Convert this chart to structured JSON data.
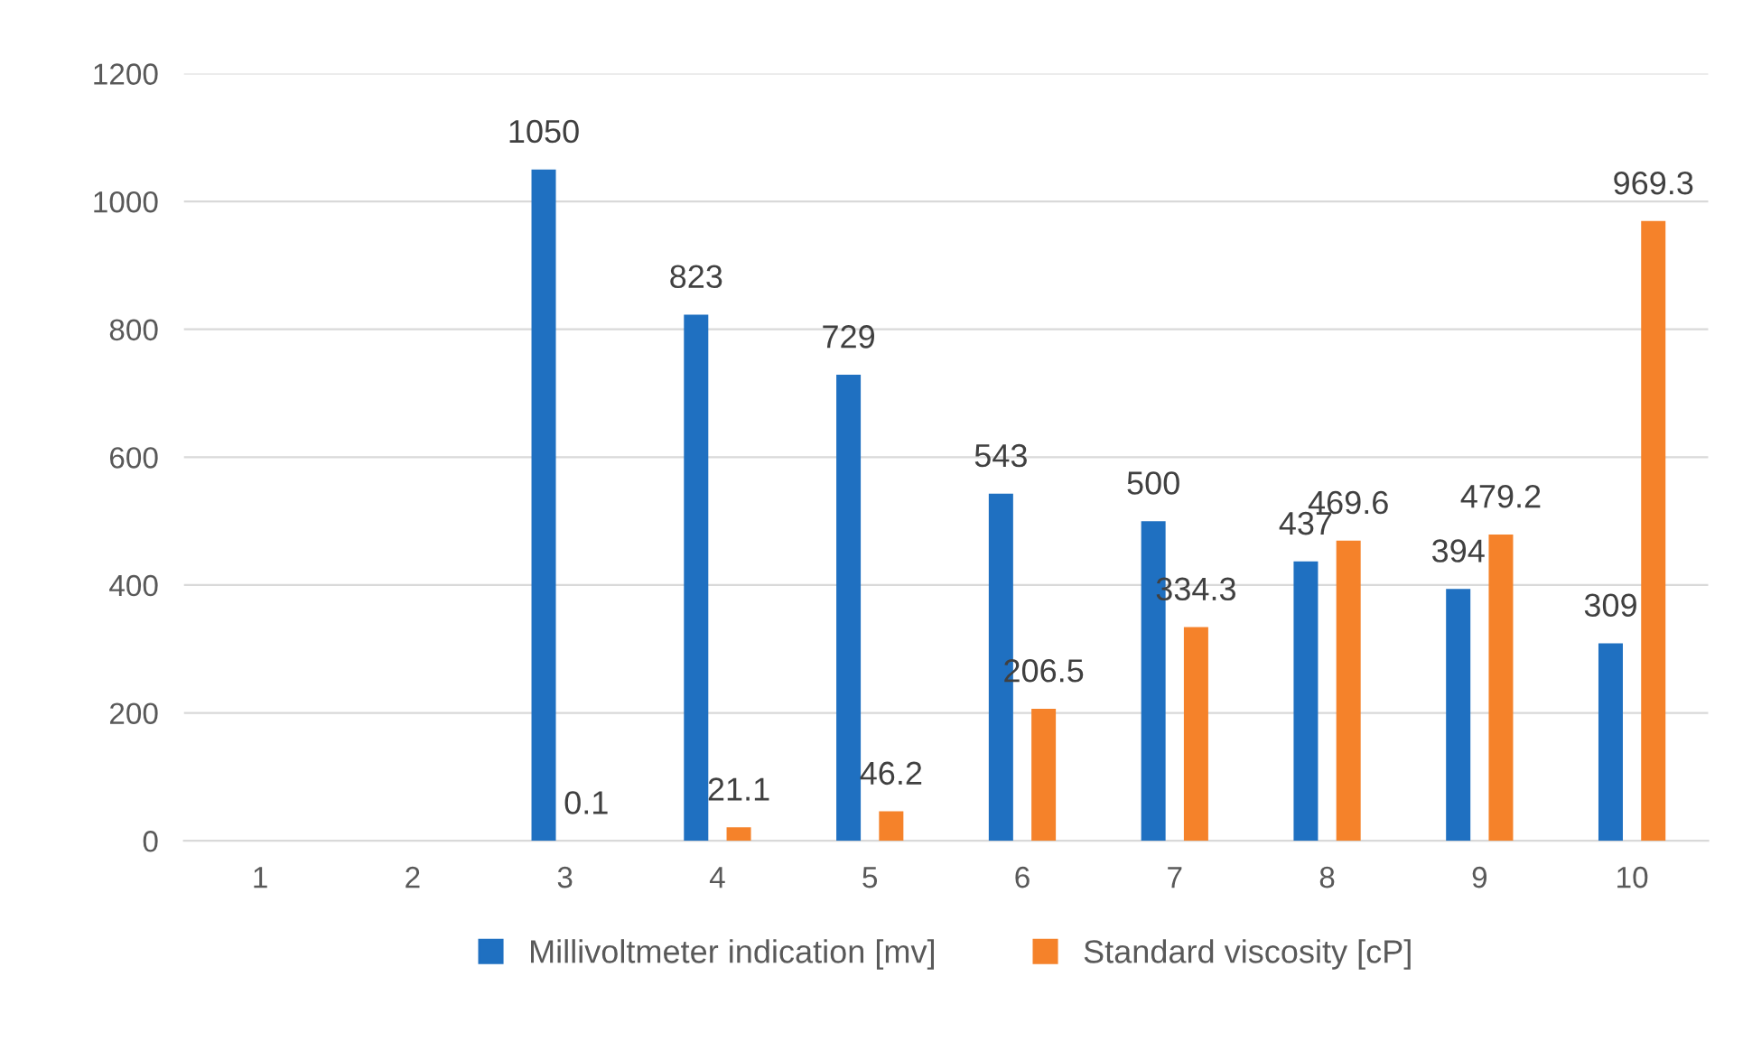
{
  "chart_data": {
    "type": "bar",
    "categories": [
      "1",
      "2",
      "3",
      "4",
      "5",
      "6",
      "7",
      "8",
      "9",
      "10"
    ],
    "series": [
      {
        "name": "Millivoltmeter indication [mv]",
        "color": "#1f70c1",
        "values": [
          null,
          null,
          1050,
          823,
          729,
          543,
          500,
          437,
          394,
          309
        ]
      },
      {
        "name": "Standard viscosity [cP]",
        "color": "#f5822a",
        "values": [
          null,
          null,
          0.1,
          21.1,
          46.2,
          206.5,
          334.3,
          469.6,
          479.2,
          969.3
        ]
      }
    ],
    "ylim": [
      0,
      1200
    ],
    "yticks": [
      0,
      200,
      400,
      600,
      800,
      1000,
      1200
    ],
    "grid": "y",
    "legend": "bottom",
    "data_labels": true
  }
}
